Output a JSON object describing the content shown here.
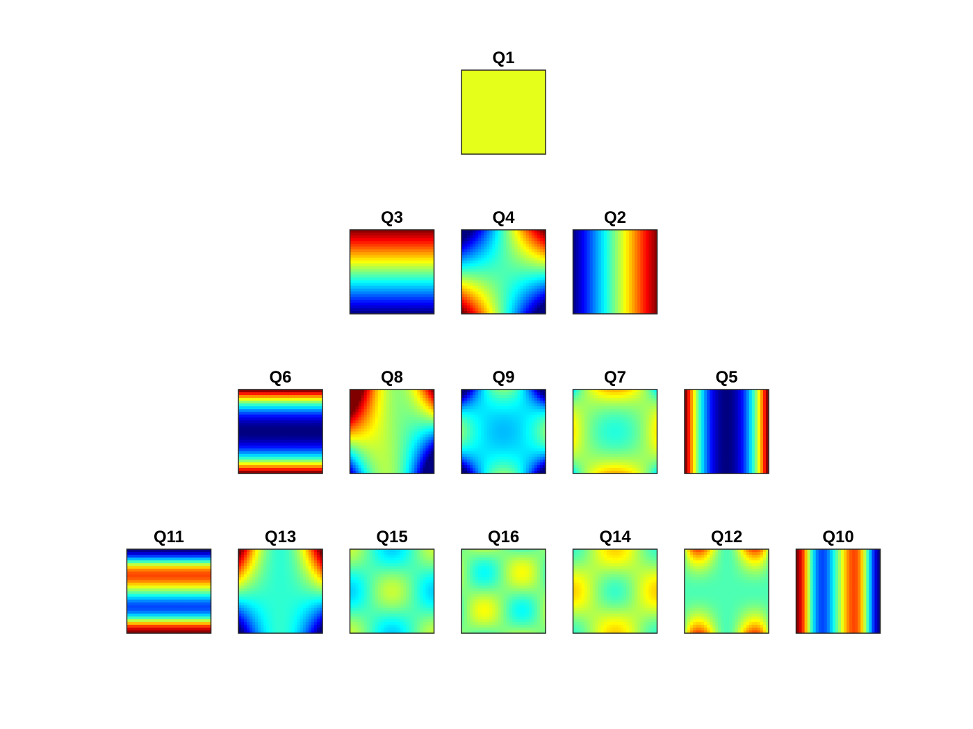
{
  "figure": {
    "colormap": "jet",
    "frame_color": "#262626",
    "rows": [
      {
        "tiles": [
          {
            "title": "Q1",
            "pattern": "constant"
          }
        ]
      },
      {
        "tiles": [
          {
            "title": "Q3",
            "pattern": "linear-vertical"
          },
          {
            "title": "Q4",
            "pattern": "xy-product"
          },
          {
            "title": "Q2",
            "pattern": "linear-horizontal"
          }
        ]
      },
      {
        "tiles": [
          {
            "title": "Q6",
            "pattern": "quadratic-vertical"
          },
          {
            "title": "Q8",
            "pattern": "mixed-x2y"
          },
          {
            "title": "Q9",
            "pattern": "mixed-x2y2"
          },
          {
            "title": "Q7",
            "pattern": "mixed-xy2"
          },
          {
            "title": "Q5",
            "pattern": "quadratic-horizontal"
          }
        ]
      },
      {
        "tiles": [
          {
            "title": "Q11",
            "pattern": "cubic-vertical"
          },
          {
            "title": "Q13",
            "pattern": "mixed-x2y-alt"
          },
          {
            "title": "Q15",
            "pattern": "mixed-x2y2-a"
          },
          {
            "title": "Q16",
            "pattern": "mixed-x2y2-b"
          },
          {
            "title": "Q14",
            "pattern": "mixed-x2y2-c"
          },
          {
            "title": "Q12",
            "pattern": "mixed-xy2-alt"
          },
          {
            "title": "Q10",
            "pattern": "cubic-horizontal"
          }
        ]
      }
    ]
  }
}
